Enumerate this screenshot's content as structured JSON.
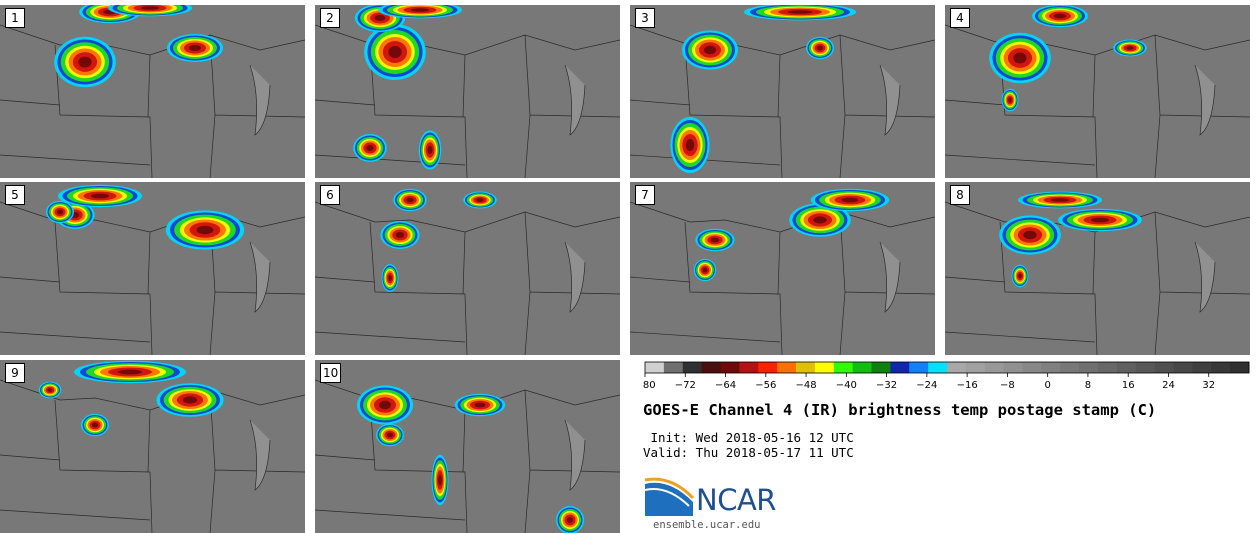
{
  "panels": [
    {
      "label": "1"
    },
    {
      "label": "2"
    },
    {
      "label": "3"
    },
    {
      "label": "4"
    },
    {
      "label": "5"
    },
    {
      "label": "6"
    },
    {
      "label": "7"
    },
    {
      "label": "8"
    },
    {
      "label": "9"
    },
    {
      "label": "10"
    }
  ],
  "colorbar": {
    "ticks": [
      -80,
      -72,
      -64,
      -56,
      -48,
      -40,
      -32,
      -24,
      -16,
      -8,
      0,
      8,
      16,
      24,
      32
    ],
    "range": [
      -80,
      40
    ],
    "colors": [
      "#d0d0d0",
      "#707070",
      "#303030",
      "#4a0f0f",
      "#6e0a0a",
      "#b81010",
      "#ff2000",
      "#ff7000",
      "#e0c000",
      "#ffff00",
      "#30ff00",
      "#10c010",
      "#108010",
      "#1028b0",
      "#1080ff",
      "#00e0ff",
      "#a8a8a8",
      "#a0a0a0",
      "#989898",
      "#909090",
      "#888888",
      "#808080",
      "#787878",
      "#707070",
      "#686868",
      "#606060",
      "#585858",
      "#505050",
      "#484848",
      "#404040",
      "#383838",
      "#303030"
    ]
  },
  "title": "GOES-E Channel 4 (IR) brightness temp postage stamp (C)",
  "init_line": " Init: Wed 2018-05-16 12 UTC",
  "valid_line": "Valid: Thu 2018-05-17 11 UTC",
  "logo": {
    "wordmark": "NCAR",
    "url": "ensemble.ucar.edu",
    "brand_color": "#1f4f8f"
  },
  "storm_colors": {
    "core": "#6e0a0a",
    "hot": "#d01010",
    "warm": "#ff7000",
    "mid": "#ffff00",
    "green": "#20e020",
    "blue": "#1040d0",
    "cyan": "#00d8ff"
  }
}
